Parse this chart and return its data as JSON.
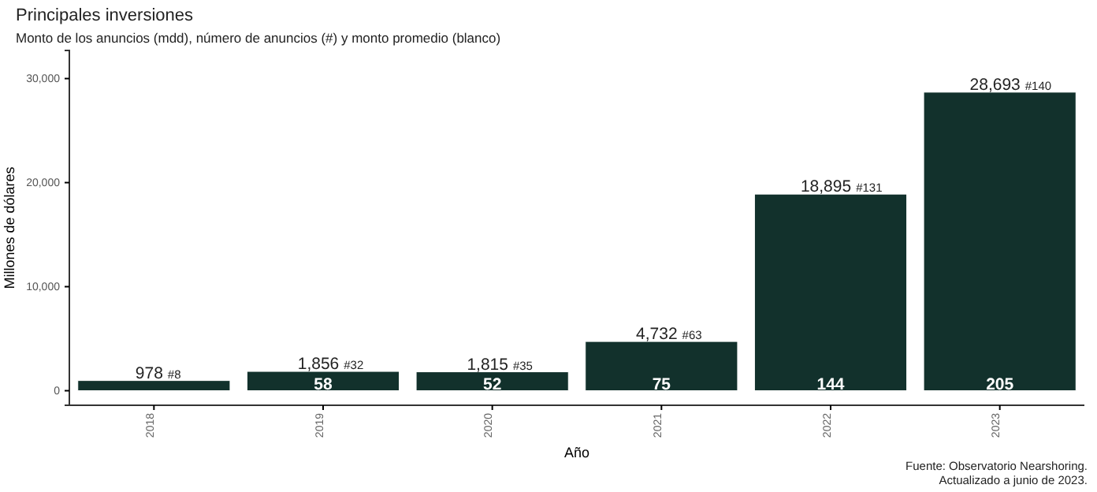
{
  "chart_data": {
    "type": "bar",
    "title": "Principales inversiones",
    "subtitle": "Monto de los anuncios (mdd), número de anuncios (#) y monto promedio (blanco)",
    "xlabel": "Año",
    "ylabel": "Millones de dólares",
    "categories": [
      "2018",
      "2019",
      "2020",
      "2021",
      "2022",
      "2023"
    ],
    "values": [
      978,
      1856,
      1815,
      4732,
      18895,
      28693
    ],
    "color": "#12312c",
    "value_labels": [
      "978",
      "1,856",
      "1,815",
      "4,732",
      "18,895",
      "28,693"
    ],
    "ylim": [
      -1400,
      32700
    ],
    "yticks": [
      {
        "value": 0,
        "label": "0"
      },
      {
        "value": 10000,
        "label": "10,000"
      },
      {
        "value": 20000,
        "label": "20,000"
      },
      {
        "value": 30000,
        "label": "30,000"
      }
    ],
    "grid": false,
    "annotations": [
      {
        "text": "#8",
        "x": "2018",
        "y": 978
      },
      {
        "text": "#32",
        "x": "2019",
        "y": 1856
      },
      {
        "text": "#35",
        "x": "2020",
        "y": 1815
      },
      {
        "text": "#63",
        "x": "2021",
        "y": 4732
      },
      {
        "text": "#131",
        "x": "2022",
        "y": 18895
      },
      {
        "text": "#140",
        "x": "2023",
        "y": 28693
      },
      {
        "text": "58",
        "x": "2019",
        "y": 0
      },
      {
        "text": "52",
        "x": "2020",
        "y": 0
      },
      {
        "text": "75",
        "x": "2021",
        "y": 0
      },
      {
        "text": "144",
        "x": "2022",
        "y": 0
      },
      {
        "text": "205",
        "x": "2023",
        "y": 0
      },
      "Fuente: Observatorio Nearshoring.",
      "Actualizado a junio de 2023."
    ]
  }
}
